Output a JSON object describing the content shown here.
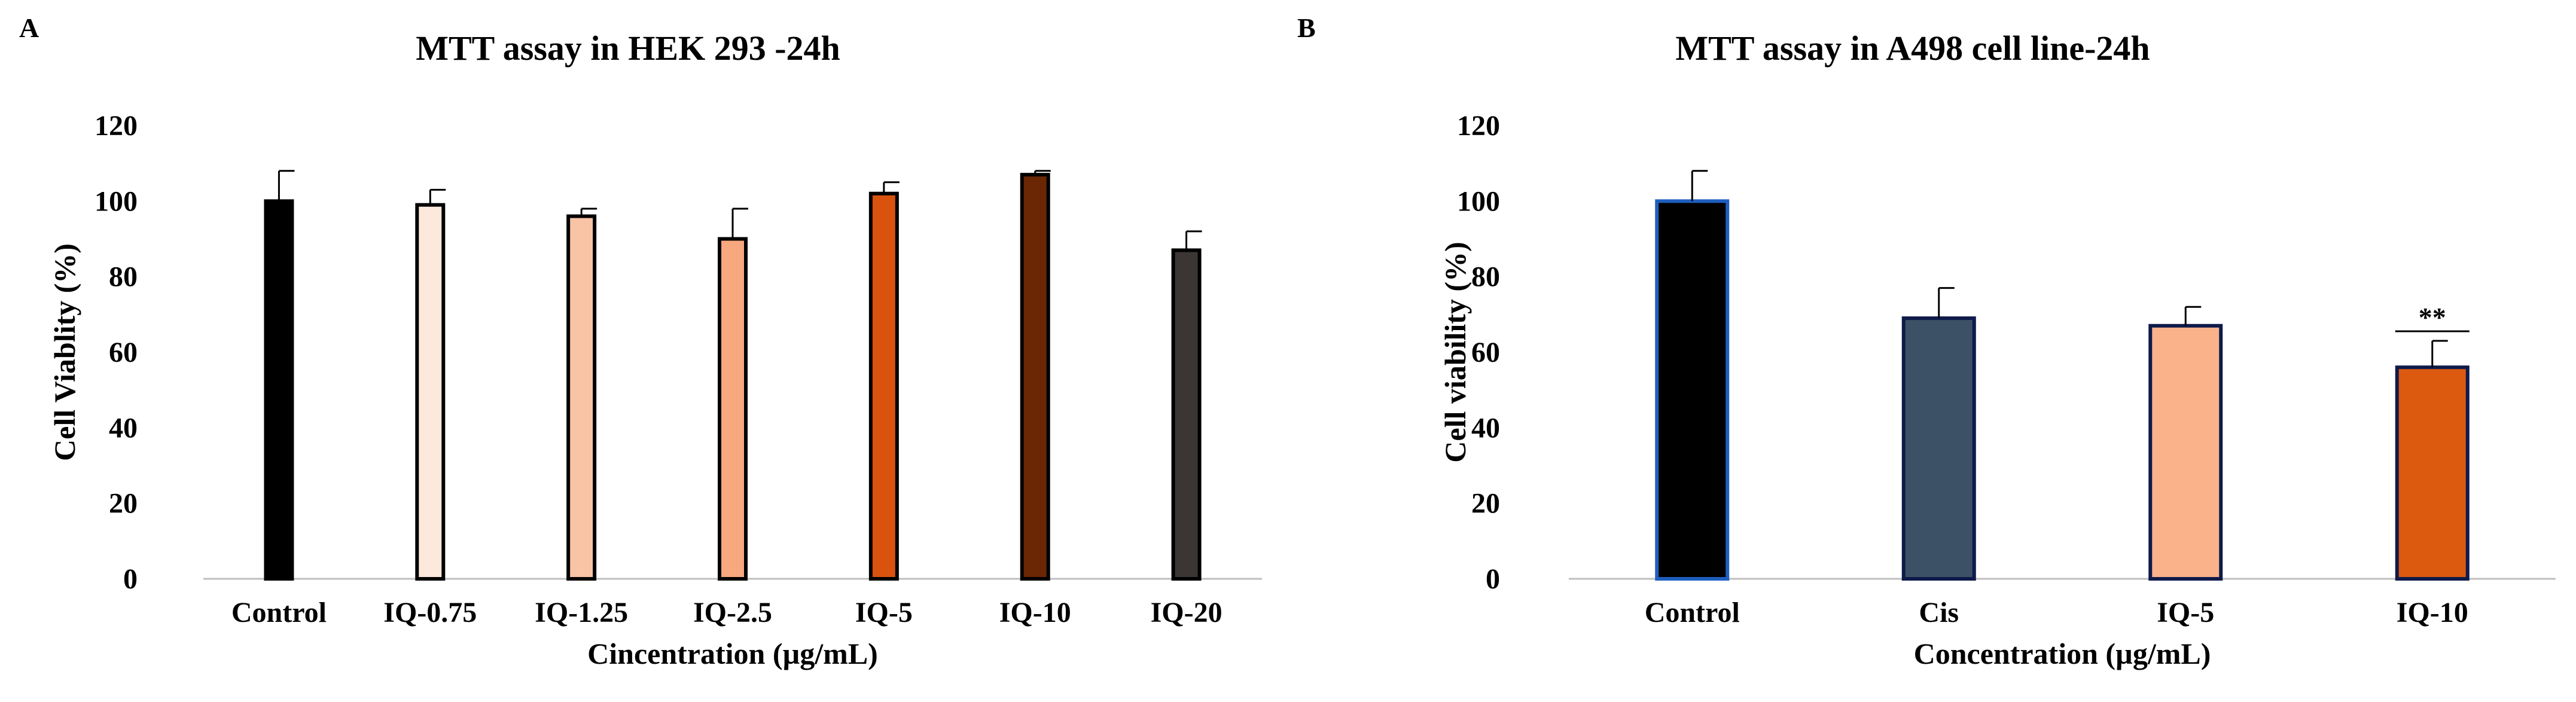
{
  "chart_data": [
    {
      "type": "bar",
      "panel_label": "A",
      "title": "MTT assay in HEK 293 -24h",
      "xlabel": "Cincentration (µg/mL)",
      "ylabel": "Cell Viablity (%)",
      "ylim": [
        0,
        120
      ],
      "yticks": [
        0,
        20,
        40,
        60,
        80,
        100,
        120
      ],
      "categories": [
        "Control",
        "IQ-0.75",
        "IQ-1.25",
        "IQ-2.5",
        "IQ-5",
        "IQ-10",
        "IQ-20"
      ],
      "values": [
        100,
        99,
        96,
        90,
        102,
        107,
        87
      ],
      "errors": [
        8,
        4,
        2,
        8,
        3,
        1,
        5
      ],
      "colors": [
        "#000000",
        "#fde8dc",
        "#f9c3a6",
        "#f7a87e",
        "#d9530e",
        "#6b2604",
        "#3b3534"
      ],
      "edge_colors": [
        "#000000",
        "#000000",
        "#000000",
        "#000000",
        "#000000",
        "#000000",
        "#000000"
      ],
      "annotations": [],
      "grid": false,
      "legend": "none"
    },
    {
      "type": "bar",
      "panel_label": "B",
      "title": "MTT assay in A498 cell line-24h",
      "xlabel": "Concentration (µg/mL)",
      "ylabel": "Cell viability (%)",
      "ylim": [
        0,
        120
      ],
      "yticks": [
        0,
        20,
        40,
        60,
        80,
        100,
        120
      ],
      "categories": [
        "Control",
        "Cis",
        "IQ-5",
        "IQ-10"
      ],
      "values": [
        100,
        69,
        67,
        56
      ],
      "errors": [
        8,
        8,
        5,
        7
      ],
      "colors": [
        "#000000",
        "#3c5165",
        "#f9b28a",
        "#dc5a10"
      ],
      "edge_colors": [
        "#1f5fbf",
        "#0e1a4a",
        "#0e1a4a",
        "#0e1a4a"
      ],
      "annotations": [
        {
          "category_index": 3,
          "text": "**"
        }
      ],
      "grid": false,
      "legend": "none"
    }
  ]
}
